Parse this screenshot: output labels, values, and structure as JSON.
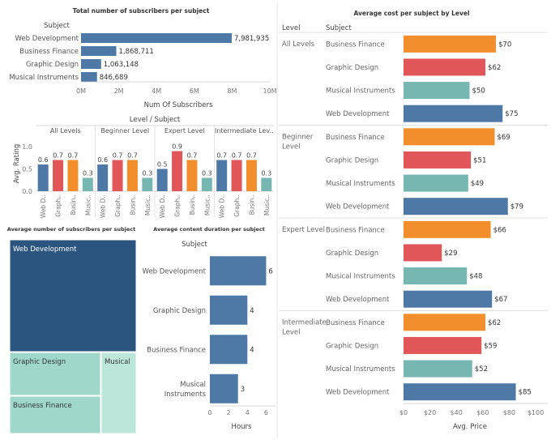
{
  "colors": {
    "blue": "#4e79a7",
    "orange": "#f28e2b",
    "red": "#e15759",
    "teal": "#76b7b2",
    "tm_dark": "#2b547e",
    "tm_light": "#9fd8cb",
    "tm_lighter": "#bde6da"
  },
  "chart_data": [
    {
      "id": "subscribers",
      "type": "bar",
      "title": "Total number of subscribers per subject",
      "ylabel": "Subject",
      "xlabel": "Num Of Subscribers",
      "categories": [
        "Web Development",
        "Business Finance",
        "Graphic Design",
        "Musical Instruments"
      ],
      "values": [
        7981935,
        1868711,
        1063148,
        846689
      ],
      "value_labels": [
        "7,981,935",
        "1,868,711",
        "1,063,148",
        "846,689"
      ],
      "xlim": [
        0,
        10000000
      ],
      "ticks": [
        0,
        2000000,
        4000000,
        6000000,
        8000000,
        10000000
      ],
      "tick_labels": [
        "0M",
        "2M",
        "4M",
        "6M",
        "8M",
        "10M"
      ]
    },
    {
      "id": "rating",
      "type": "bar",
      "title": "Level / Subject",
      "ylabel": "Avg. Rating",
      "ylim": [
        0,
        1.0
      ],
      "yticks": [
        0.0,
        0.5,
        1.0
      ],
      "ytick_labels": [
        "0.0",
        "0.5",
        "1.0"
      ],
      "groups": [
        {
          "label": "All Levels",
          "categories": [
            "Web D..",
            "Graph..",
            "Busin..",
            "Music.."
          ],
          "values": [
            0.6,
            0.7,
            0.7,
            0.3
          ]
        },
        {
          "label": "Beginner Level",
          "categories": [
            "Web D..",
            "Graph..",
            "Busin..",
            "Music.."
          ],
          "values": [
            0.6,
            0.7,
            0.7,
            0.3
          ]
        },
        {
          "label": "Expert Level",
          "categories": [
            "Web D..",
            "Graph..",
            "Busin..",
            "Music.."
          ],
          "values": [
            0.5,
            0.9,
            0.7,
            0.3
          ]
        },
        {
          "label": "Intermediate Lev..",
          "categories": [
            "Web D..",
            "Graph..",
            "Busin..",
            "Music.."
          ],
          "values": [
            0.7,
            0.7,
            0.7,
            0.3
          ]
        }
      ]
    },
    {
      "id": "treemap",
      "type": "treemap",
      "title": "Average number of subscribers per subject",
      "items": [
        {
          "label": "Web Development",
          "color": "tm_dark"
        },
        {
          "label": "Graphic Design",
          "color": "tm_light"
        },
        {
          "label": "Business Finance",
          "color": "tm_light"
        },
        {
          "label": "Musical",
          "color": "tm_lighter"
        }
      ]
    },
    {
      "id": "duration",
      "type": "bar",
      "title": "Average content duration per subject",
      "ylabel": "Subject",
      "xlabel": "Hours",
      "categories": [
        "Web Development",
        "Graphic Design",
        "Business Finance",
        "Musical Instruments"
      ],
      "category_lines": [
        [
          "Web Development"
        ],
        [
          "Graphic Design"
        ],
        [
          "Business Finance"
        ],
        [
          "Musical",
          "Instruments"
        ]
      ],
      "values": [
        6,
        4,
        4,
        3
      ],
      "xlim": [
        0,
        7
      ],
      "ticks": [
        0,
        2,
        4,
        6
      ]
    },
    {
      "id": "price",
      "type": "bar",
      "title": "Average cost per subject by Level",
      "col_headers": [
        "Level",
        "Subject"
      ],
      "xlabel": "Avg. Price",
      "xlim": [
        0,
        100
      ],
      "ticks": [
        0,
        20,
        40,
        60,
        80,
        100
      ],
      "tick_labels": [
        "$0",
        "$20",
        "$40",
        "$60",
        "$80",
        "$100"
      ],
      "groups": [
        {
          "label": "All Levels",
          "label_lines": [
            "All Levels"
          ],
          "items": [
            {
              "subject": "Business Finance",
              "value": 70,
              "label": "$70",
              "color": "orange"
            },
            {
              "subject": "Graphic Design",
              "value": 62,
              "label": "$62",
              "color": "red"
            },
            {
              "subject": "Musical Instruments",
              "value": 50,
              "label": "$50",
              "color": "teal"
            },
            {
              "subject": "Web Development",
              "value": 75,
              "label": "$75",
              "color": "blue"
            }
          ]
        },
        {
          "label": "Beginner Level",
          "label_lines": [
            "Beginner",
            "Level"
          ],
          "items": [
            {
              "subject": "Business Finance",
              "value": 69,
              "label": "$69",
              "color": "orange"
            },
            {
              "subject": "Graphic Design",
              "value": 51,
              "label": "$51",
              "color": "red"
            },
            {
              "subject": "Musical Instruments",
              "value": 49,
              "label": "$49",
              "color": "teal"
            },
            {
              "subject": "Web Development",
              "value": 79,
              "label": "$79",
              "color": "blue"
            }
          ]
        },
        {
          "label": "Expert Level",
          "label_lines": [
            "Expert Level"
          ],
          "items": [
            {
              "subject": "Business Finance",
              "value": 66,
              "label": "$66",
              "color": "orange"
            },
            {
              "subject": "Graphic Design",
              "value": 29,
              "label": "$29",
              "color": "red"
            },
            {
              "subject": "Musical Instruments",
              "value": 48,
              "label": "$48",
              "color": "teal"
            },
            {
              "subject": "Web Development",
              "value": 67,
              "label": "$67",
              "color": "blue"
            }
          ]
        },
        {
          "label": "Intermediate Level",
          "label_lines": [
            "Intermediate",
            "Level"
          ],
          "items": [
            {
              "subject": "Business Finance",
              "value": 62,
              "label": "$62",
              "color": "orange"
            },
            {
              "subject": "Graphic Design",
              "value": 59,
              "label": "$59",
              "color": "red"
            },
            {
              "subject": "Musical Instruments",
              "value": 52,
              "label": "$52",
              "color": "teal"
            },
            {
              "subject": "Web Development",
              "value": 85,
              "label": "$85",
              "color": "blue"
            }
          ]
        }
      ]
    }
  ]
}
